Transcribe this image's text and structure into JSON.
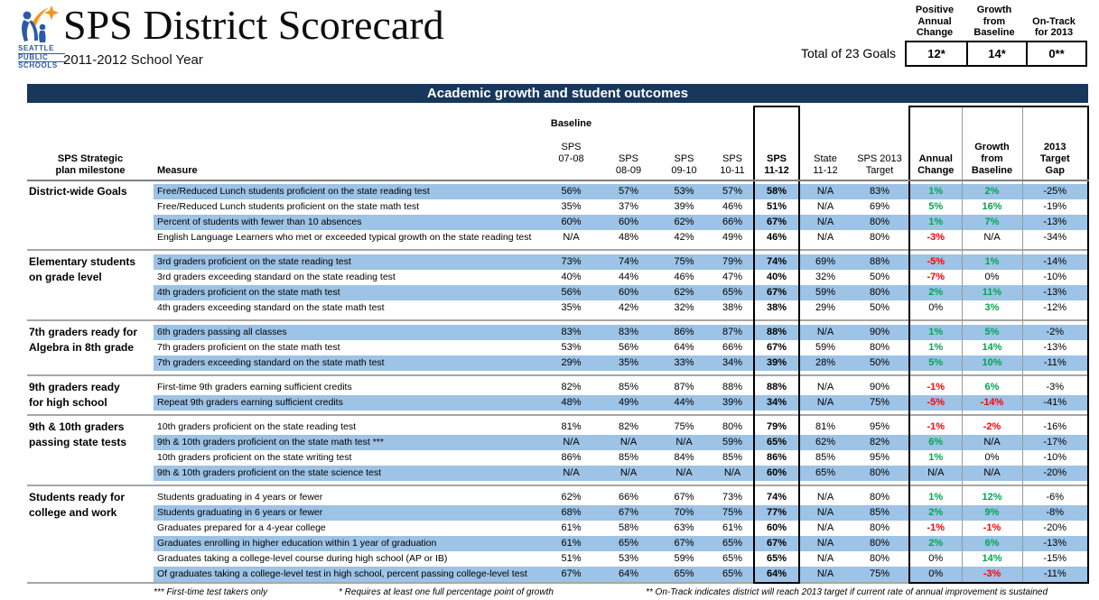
{
  "colors": {
    "banner": "#17375D",
    "row_highlight": "#9DC3E6",
    "positive": "#00A651",
    "negative": "#FF0000",
    "logo_blue": "#2B5BA8",
    "logo_orange": "#F7941E"
  },
  "header": {
    "title": "SPS District Scorecard",
    "subtitle": "2011-2012 School Year",
    "logo_lines": [
      "SEATTLE",
      "PUBLIC",
      "SCHOOLS"
    ]
  },
  "summary": {
    "label": "Total of 23 Goals",
    "columns": [
      {
        "header": "Positive\nAnnual\nChange",
        "value": "12*"
      },
      {
        "header": "Growth\nfrom\nBaseline",
        "value": "14*"
      },
      {
        "header": "On-Track\nfor 2013",
        "value": "0**"
      }
    ]
  },
  "banner": "Academic growth and student outcomes",
  "table": {
    "headers": {
      "milestone": "SPS Strategic\nplan milestone",
      "measure": "Measure",
      "baseline_label": "Baseline",
      "col_0708": "SPS\n07-08",
      "col_0809": "SPS\n08-09",
      "col_0910": "SPS\n09-10",
      "col_1011": "SPS\n10-11",
      "col_1112": "SPS\n11-12",
      "col_state": "State\n11-12",
      "col_target": "SPS 2013\nTarget",
      "col_annual": "Annual\nChange",
      "col_growth": "Growth\nfrom\nBaseline",
      "col_gap": "2013\nTarget\nGap"
    },
    "groups": [
      {
        "milestone": "District-wide Goals",
        "rows": [
          {
            "measure": "Free/Reduced Lunch students proficient on the state reading test",
            "shaded": true,
            "baseline": [
              "56%",
              "57%",
              "53%",
              "57%"
            ],
            "sps": "58%",
            "state": "N/A",
            "target": "83%",
            "annual": "1%",
            "annual_tone": "pos",
            "growth": "2%",
            "growth_tone": "pos",
            "gap": "-25%"
          },
          {
            "measure": "Free/Reduced Lunch students proficient on the state math test",
            "shaded": false,
            "baseline": [
              "35%",
              "37%",
              "39%",
              "46%"
            ],
            "sps": "51%",
            "state": "N/A",
            "target": "69%",
            "annual": "5%",
            "annual_tone": "pos",
            "growth": "16%",
            "growth_tone": "pos",
            "gap": "-19%"
          },
          {
            "measure": "Percent of students with fewer than 10 absences",
            "shaded": true,
            "baseline": [
              "60%",
              "60%",
              "62%",
              "66%"
            ],
            "sps": "67%",
            "state": "N/A",
            "target": "80%",
            "annual": "1%",
            "annual_tone": "pos",
            "growth": "7%",
            "growth_tone": "pos",
            "gap": "-13%"
          },
          {
            "measure": "English Language Learners who met or exceeded typical growth on the state reading test",
            "shaded": false,
            "baseline": [
              "N/A",
              "48%",
              "42%",
              "49%"
            ],
            "sps": "46%",
            "state": "N/A",
            "target": "80%",
            "annual": "-3%",
            "annual_tone": "neg",
            "growth": "N/A",
            "growth_tone": "neutral",
            "gap": "-34%"
          }
        ]
      },
      {
        "milestone": "Elementary students\non grade level",
        "rows": [
          {
            "measure": "3rd graders proficient on the state reading test",
            "shaded": true,
            "baseline": [
              "73%",
              "74%",
              "75%",
              "79%"
            ],
            "sps": "74%",
            "state": "69%",
            "target": "88%",
            "annual": "-5%",
            "annual_tone": "neg",
            "growth": "1%",
            "growth_tone": "pos",
            "gap": "-14%"
          },
          {
            "measure": "3rd graders exceeding standard on the state reading test",
            "shaded": false,
            "baseline": [
              "40%",
              "44%",
              "46%",
              "47%"
            ],
            "sps": "40%",
            "state": "32%",
            "target": "50%",
            "annual": "-7%",
            "annual_tone": "neg",
            "growth": "0%",
            "growth_tone": "neutral",
            "gap": "-10%"
          },
          {
            "measure": "4th graders proficient on the state math test",
            "shaded": true,
            "baseline": [
              "56%",
              "60%",
              "62%",
              "65%"
            ],
            "sps": "67%",
            "state": "59%",
            "target": "80%",
            "annual": "2%",
            "annual_tone": "pos",
            "growth": "11%",
            "growth_tone": "pos",
            "gap": "-13%"
          },
          {
            "measure": "4th graders exceeding standard on the state math test",
            "shaded": false,
            "baseline": [
              "35%",
              "42%",
              "32%",
              "38%"
            ],
            "sps": "38%",
            "state": "29%",
            "target": "50%",
            "annual": "0%",
            "annual_tone": "neutral",
            "growth": "3%",
            "growth_tone": "pos",
            "gap": "-12%"
          }
        ]
      },
      {
        "milestone": "7th graders ready for\nAlgebra in 8th grade",
        "rows": [
          {
            "measure": "6th graders passing all classes",
            "shaded": true,
            "baseline": [
              "83%",
              "83%",
              "86%",
              "87%"
            ],
            "sps": "88%",
            "state": "N/A",
            "target": "90%",
            "annual": "1%",
            "annual_tone": "pos",
            "growth": "5%",
            "growth_tone": "pos",
            "gap": "-2%"
          },
          {
            "measure": "7th graders proficient on the state math test",
            "shaded": false,
            "baseline": [
              "53%",
              "56%",
              "64%",
              "66%"
            ],
            "sps": "67%",
            "state": "59%",
            "target": "80%",
            "annual": "1%",
            "annual_tone": "pos",
            "growth": "14%",
            "growth_tone": "pos",
            "gap": "-13%"
          },
          {
            "measure": "7th graders exceeding standard on the state math test",
            "shaded": true,
            "baseline": [
              "29%",
              "35%",
              "33%",
              "34%"
            ],
            "sps": "39%",
            "state": "28%",
            "target": "50%",
            "annual": "5%",
            "annual_tone": "pos",
            "growth": "10%",
            "growth_tone": "pos",
            "gap": "-11%"
          }
        ]
      },
      {
        "milestone": "9th graders ready\nfor high school",
        "rows": [
          {
            "measure": "First-time 9th graders earning sufficient credits",
            "shaded": false,
            "baseline": [
              "82%",
              "85%",
              "87%",
              "88%"
            ],
            "sps": "88%",
            "state": "N/A",
            "target": "90%",
            "annual": "-1%",
            "annual_tone": "neg",
            "growth": "6%",
            "growth_tone": "pos",
            "gap": "-3%"
          },
          {
            "measure": "Repeat 9th graders earning sufficient credits",
            "shaded": true,
            "baseline": [
              "48%",
              "49%",
              "44%",
              "39%"
            ],
            "sps": "34%",
            "state": "N/A",
            "target": "75%",
            "annual": "-5%",
            "annual_tone": "neg",
            "growth": "-14%",
            "growth_tone": "neg",
            "gap": "-41%"
          }
        ]
      },
      {
        "milestone": "9th & 10th graders\npassing state tests",
        "rows": [
          {
            "measure": "10th graders proficient on the state reading test",
            "shaded": false,
            "baseline": [
              "81%",
              "82%",
              "75%",
              "80%"
            ],
            "sps": "79%",
            "state": "81%",
            "target": "95%",
            "annual": "-1%",
            "annual_tone": "neg",
            "growth": "-2%",
            "growth_tone": "neg",
            "gap": "-16%"
          },
          {
            "measure": "9th & 10th graders proficient on the state math test ***",
            "shaded": true,
            "baseline": [
              "N/A",
              "N/A",
              "N/A",
              "59%"
            ],
            "sps": "65%",
            "state": "62%",
            "target": "82%",
            "annual": "6%",
            "annual_tone": "pos",
            "growth": "N/A",
            "growth_tone": "neutral",
            "gap": "-17%"
          },
          {
            "measure": "10th graders proficient on the state writing test",
            "shaded": false,
            "baseline": [
              "86%",
              "85%",
              "84%",
              "85%"
            ],
            "sps": "86%",
            "state": "85%",
            "target": "95%",
            "annual": "1%",
            "annual_tone": "pos",
            "growth": "0%",
            "growth_tone": "neutral",
            "gap": "-10%"
          },
          {
            "measure": "9th & 10th graders proficient on the state science test",
            "shaded": true,
            "baseline": [
              "N/A",
              "N/A",
              "N/A",
              "N/A"
            ],
            "sps": "60%",
            "state": "65%",
            "target": "80%",
            "annual": "N/A",
            "annual_tone": "neutral",
            "growth": "N/A",
            "growth_tone": "neutral",
            "gap": "-20%"
          }
        ]
      },
      {
        "milestone": "Students ready for\ncollege and work",
        "rows": [
          {
            "measure": "Students graduating in 4 years or fewer",
            "shaded": false,
            "baseline": [
              "62%",
              "66%",
              "67%",
              "73%"
            ],
            "sps": "74%",
            "state": "N/A",
            "target": "80%",
            "annual": "1%",
            "annual_tone": "pos",
            "growth": "12%",
            "growth_tone": "pos",
            "gap": "-6%"
          },
          {
            "measure": "Students graduating in 6 years or fewer",
            "shaded": true,
            "baseline": [
              "68%",
              "67%",
              "70%",
              "75%"
            ],
            "sps": "77%",
            "state": "N/A",
            "target": "85%",
            "annual": "2%",
            "annual_tone": "pos",
            "growth": "9%",
            "growth_tone": "pos",
            "gap": "-8%"
          },
          {
            "measure": "Graduates prepared for a 4-year college",
            "shaded": false,
            "baseline": [
              "61%",
              "58%",
              "63%",
              "61%"
            ],
            "sps": "60%",
            "state": "N/A",
            "target": "80%",
            "annual": "-1%",
            "annual_tone": "neg",
            "growth": "-1%",
            "growth_tone": "neg",
            "gap": "-20%"
          },
          {
            "measure": "Graduates enrolling in higher education within 1 year of graduation",
            "shaded": true,
            "baseline": [
              "61%",
              "65%",
              "67%",
              "65%"
            ],
            "sps": "67%",
            "state": "N/A",
            "target": "80%",
            "annual": "2%",
            "annual_tone": "pos",
            "growth": "6%",
            "growth_tone": "pos",
            "gap": "-13%"
          },
          {
            "measure": "Graduates taking a college-level course during high school (AP or IB)",
            "shaded": false,
            "baseline": [
              "51%",
              "53%",
              "59%",
              "65%"
            ],
            "sps": "65%",
            "state": "N/A",
            "target": "80%",
            "annual": "0%",
            "annual_tone": "neutral",
            "growth": "14%",
            "growth_tone": "pos",
            "gap": "-15%"
          },
          {
            "measure": "Of graduates taking a college-level test in high school, percent passing college-level test",
            "shaded": true,
            "baseline": [
              "67%",
              "64%",
              "65%",
              "65%"
            ],
            "sps": "64%",
            "state": "N/A",
            "target": "75%",
            "annual": "0%",
            "annual_tone": "neutral",
            "growth": "-3%",
            "growth_tone": "neg",
            "gap": "-11%"
          }
        ]
      }
    ]
  },
  "footnotes": [
    "*** First-time test takers only",
    "* Requires at least one full percentage point of growth",
    "** On-Track indicates district will reach 2013 target if current rate of annual improvement is sustained"
  ]
}
